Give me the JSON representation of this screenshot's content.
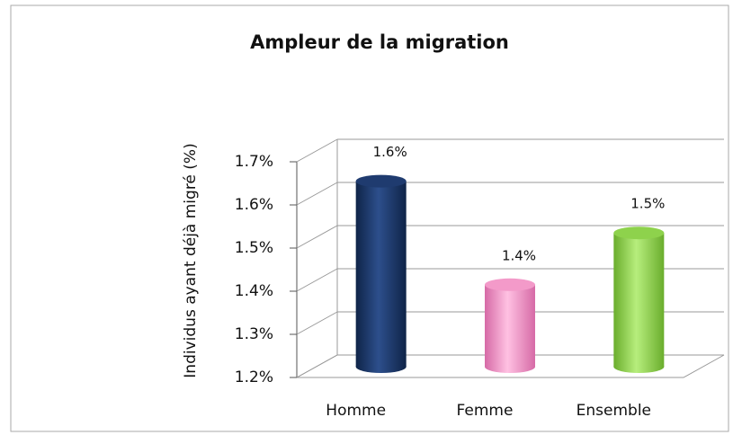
{
  "chart_data": {
    "type": "bar",
    "title": "Ampleur de la migration",
    "y_label": "Individus ayant déjà migré (%)",
    "categories": [
      "Homme",
      "Femme",
      "Ensemble"
    ],
    "values": [
      1.63,
      1.39,
      1.51
    ],
    "value_labels": [
      "1.6%",
      "1.4%",
      "1.5%"
    ],
    "colors": [
      "#1f3b6f",
      "#f39ac9",
      "#8ed24c"
    ],
    "ylim": [
      1.2,
      1.7
    ],
    "yticks": [
      {
        "value": 1.2,
        "label": "1.2%"
      },
      {
        "value": 1.3,
        "label": "1.3%"
      },
      {
        "value": 1.4,
        "label": "1.4%"
      },
      {
        "value": 1.5,
        "label": "1.5%"
      },
      {
        "value": 1.6,
        "label": "1.6%"
      },
      {
        "value": 1.7,
        "label": "1.7%"
      }
    ],
    "grid": true
  }
}
